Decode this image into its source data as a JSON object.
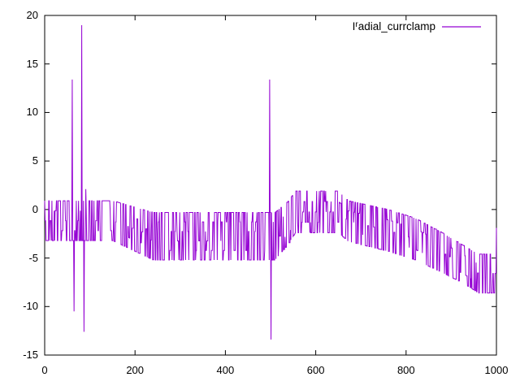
{
  "legend_text": {
    "prefix": "I",
    "sup": "r",
    "rest": "adial_currclamp"
  },
  "colors": {
    "line": "#9400d3",
    "axis": "#000000",
    "text": "#000000",
    "background": "#ffffff"
  },
  "chart_data": {
    "type": "line",
    "title": "",
    "xlabel": "",
    "ylabel": "",
    "xlim": [
      0,
      1000
    ],
    "ylim": [
      -15,
      20
    ],
    "xticks": [
      0,
      200,
      400,
      600,
      800,
      1000
    ],
    "yticks": [
      -15,
      -10,
      -5,
      0,
      5,
      10,
      15,
      20
    ],
    "grid": false,
    "legend": {
      "position": "top-right",
      "entries": [
        {
          "label": "Iʳadial_currclamp",
          "color": "#9400d3"
        }
      ]
    },
    "series": [
      {
        "name": "Iʳadial_currclamp",
        "color": "#9400d3",
        "pattern": "random-telegraph-noise",
        "n_points": 1001,
        "level_step": 1.05,
        "seed": 1337,
        "envelope": [
          [
            0,
            0.9,
            -3.2
          ],
          [
            150,
            0.9,
            -3.2
          ],
          [
            240,
            -0.3,
            -5.2
          ],
          [
            510,
            -0.3,
            -5.2
          ],
          [
            540,
            0.9,
            -3.5
          ],
          [
            555,
            1.9,
            -2.4
          ],
          [
            650,
            1.9,
            -2.4
          ],
          [
            672,
            0.9,
            -3.3
          ],
          [
            760,
            0.0,
            -4.3
          ],
          [
            820,
            -0.9,
            -5.2
          ],
          [
            880,
            -2.4,
            -6.5
          ],
          [
            930,
            -3.8,
            -7.7
          ],
          [
            960,
            -4.6,
            -8.6
          ],
          [
            1000,
            -4.6,
            -8.6
          ]
        ],
        "spikes": [
          [
            61,
            13.4
          ],
          [
            65,
            -10.5
          ],
          [
            82,
            19.0
          ],
          [
            87,
            -12.6
          ],
          [
            91,
            2.1
          ],
          [
            498,
            13.4
          ],
          [
            501,
            -13.4
          ],
          [
            1000,
            -1.9
          ]
        ]
      }
    ]
  }
}
